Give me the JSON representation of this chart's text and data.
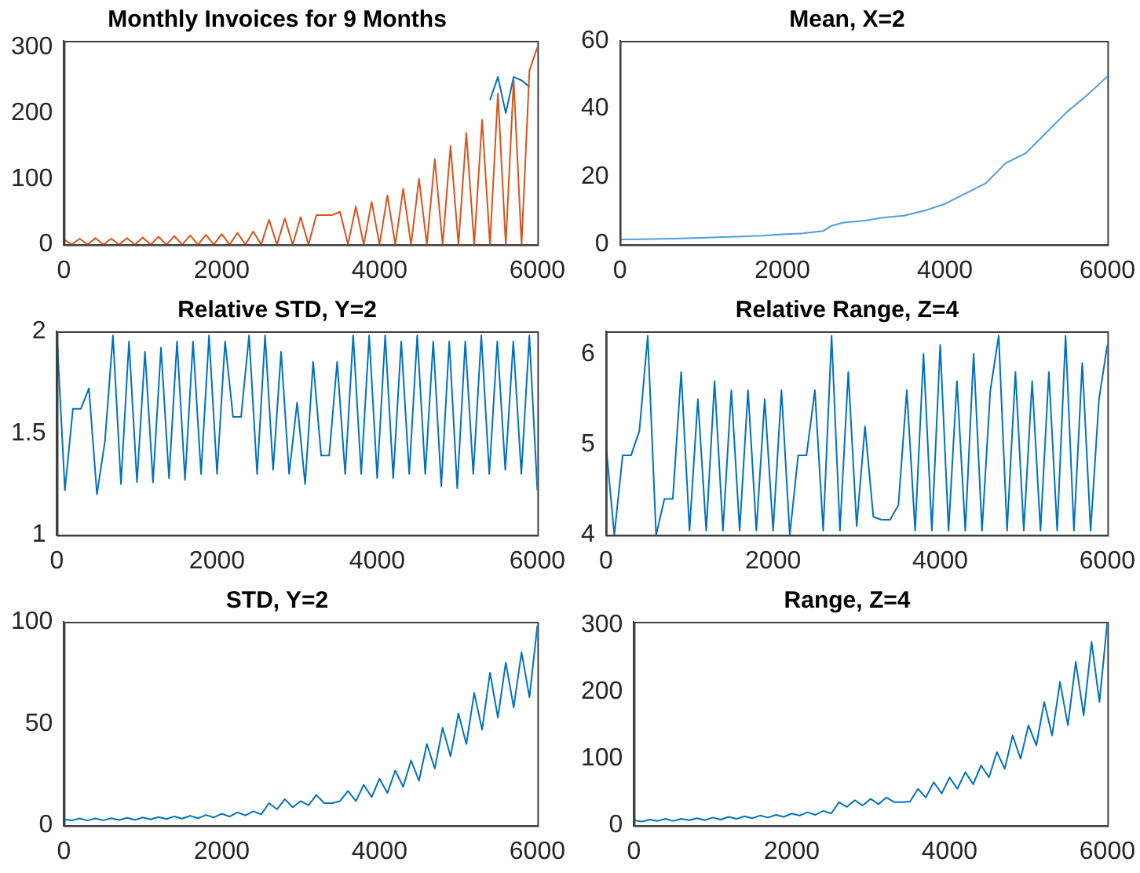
{
  "chart_data": [
    {
      "type": "line",
      "title": "Monthly Invoices for 9 Months",
      "x": [
        0,
        100,
        200,
        300,
        400,
        500,
        600,
        700,
        800,
        900,
        1000,
        1100,
        1200,
        1300,
        1400,
        1500,
        1600,
        1700,
        1800,
        1900,
        2000,
        2100,
        2200,
        2300,
        2400,
        2500,
        2600,
        2700,
        2800,
        2900,
        3000,
        3100,
        3200,
        3300,
        3400,
        3500,
        3600,
        3700,
        3800,
        3900,
        4000,
        4100,
        4200,
        4300,
        4400,
        4500,
        4600,
        4700,
        4800,
        4900,
        5000,
        5100,
        5200,
        5300,
        5400,
        5500,
        5600,
        5700,
        5800,
        5900,
        6000
      ],
      "series": [
        {
          "color": "#d95319",
          "values": [
            8,
            0,
            9,
            0,
            10,
            0,
            9,
            0,
            10,
            0,
            11,
            0,
            12,
            0,
            13,
            0,
            14,
            0,
            15,
            0,
            16,
            0,
            18,
            0,
            20,
            0,
            38,
            0,
            40,
            0,
            42,
            0,
            45,
            45,
            45,
            50,
            0,
            58,
            0,
            65,
            0,
            75,
            0,
            85,
            0,
            100,
            0,
            130,
            0,
            150,
            0,
            170,
            0,
            190,
            0,
            230,
            0,
            250,
            0,
            265,
            300
          ]
        },
        {
          "color": "#0072bd",
          "x": [
            5400,
            5500,
            5600,
            5700,
            5800,
            5900
          ],
          "values": [
            220,
            255,
            200,
            255,
            250,
            240
          ]
        }
      ],
      "xlim": [
        0,
        6000
      ],
      "xticks": [
        0,
        2000,
        4000,
        6000
      ],
      "ylim": [
        0,
        310
      ],
      "yticks": [
        0,
        100,
        200,
        300
      ],
      "grid": false,
      "marker": "none"
    },
    {
      "type": "line",
      "title": "Mean, X=2",
      "x": [
        0,
        250,
        500,
        750,
        1000,
        1250,
        1500,
        1750,
        2000,
        2250,
        2500,
        2600,
        2750,
        3000,
        3250,
        3500,
        3750,
        4000,
        4250,
        4500,
        4750,
        5000,
        5250,
        5500,
        5750,
        6000
      ],
      "series": [
        {
          "color": "#4f9fdc",
          "values": [
            1.5,
            1.6,
            1.7,
            1.8,
            2,
            2.2,
            2.4,
            2.6,
            3,
            3.3,
            4,
            5.5,
            6.5,
            7,
            8,
            8.5,
            10,
            12,
            15,
            18,
            24,
            27,
            33,
            39,
            44,
            49.5
          ]
        }
      ],
      "xlim": [
        0,
        6000
      ],
      "xticks": [
        0,
        2000,
        4000,
        6000
      ],
      "ylim": [
        0,
        60
      ],
      "yticks": [
        0,
        20,
        40,
        60
      ],
      "grid": false,
      "marker": "none"
    },
    {
      "type": "line",
      "title": "Relative STD, Y=2",
      "x": [
        0,
        100,
        200,
        300,
        400,
        500,
        600,
        700,
        800,
        900,
        1000,
        1100,
        1200,
        1300,
        1400,
        1500,
        1600,
        1700,
        1800,
        1900,
        2000,
        2100,
        2200,
        2300,
        2400,
        2500,
        2600,
        2700,
        2800,
        2900,
        3000,
        3100,
        3200,
        3300,
        3400,
        3500,
        3600,
        3700,
        3800,
        3900,
        4000,
        4100,
        4200,
        4300,
        4400,
        4500,
        4600,
        4700,
        4800,
        4900,
        5000,
        5100,
        5200,
        5300,
        5400,
        5500,
        5600,
        5700,
        5800,
        5900,
        6000
      ],
      "series": [
        {
          "color": "#0072bd",
          "values": [
            1.98,
            1.22,
            1.62,
            1.62,
            1.72,
            1.2,
            1.46,
            1.98,
            1.25,
            1.95,
            1.26,
            1.9,
            1.26,
            1.92,
            1.28,
            1.95,
            1.27,
            1.95,
            1.3,
            1.98,
            1.3,
            1.95,
            1.58,
            1.58,
            1.98,
            1.3,
            1.98,
            1.32,
            1.9,
            1.3,
            1.65,
            1.25,
            1.85,
            1.39,
            1.39,
            1.85,
            1.3,
            1.98,
            1.3,
            1.98,
            1.28,
            1.98,
            1.28,
            1.95,
            1.3,
            1.98,
            1.3,
            1.95,
            1.24,
            1.95,
            1.23,
            1.95,
            1.3,
            1.98,
            1.3,
            1.95,
            1.32,
            1.95,
            1.3,
            1.98,
            1.22
          ]
        }
      ],
      "xlim": [
        0,
        6000
      ],
      "xticks": [
        0,
        2000,
        4000,
        6000
      ],
      "ylim": [
        1,
        2
      ],
      "yticks": [
        1,
        1.5,
        2
      ],
      "grid": false,
      "marker": "none"
    },
    {
      "type": "line",
      "title": "Relative Range, Z=4",
      "x": [
        0,
        100,
        200,
        300,
        400,
        500,
        600,
        700,
        800,
        900,
        1000,
        1100,
        1200,
        1300,
        1400,
        1500,
        1600,
        1700,
        1800,
        1900,
        2000,
        2100,
        2200,
        2300,
        2400,
        2500,
        2600,
        2700,
        2800,
        2900,
        3000,
        3100,
        3200,
        3300,
        3400,
        3500,
        3600,
        3700,
        3800,
        3900,
        4000,
        4100,
        4200,
        4300,
        4400,
        4500,
        4600,
        4700,
        4800,
        4900,
        5000,
        5100,
        5200,
        5300,
        5400,
        5500,
        5600,
        5700,
        5800,
        5900,
        6000
      ],
      "series": [
        {
          "color": "#0072bd",
          "values": [
            5,
            4,
            4.88,
            4.88,
            5.15,
            6.2,
            4,
            4.4,
            4.4,
            5.8,
            4.05,
            5.5,
            4.05,
            5.7,
            4.05,
            5.6,
            4.05,
            5.6,
            4.05,
            5.5,
            4.05,
            5.6,
            4,
            4.88,
            4.88,
            5.6,
            4.05,
            6.2,
            4.05,
            5.8,
            4.1,
            5.2,
            4.2,
            4.17,
            4.17,
            4.33,
            5.6,
            4.05,
            6,
            4.05,
            6.1,
            4.05,
            5.7,
            4.05,
            6,
            4.05,
            5.6,
            6.2,
            4.05,
            5.8,
            4.05,
            5.7,
            4.05,
            5.8,
            4.05,
            6.2,
            4.05,
            5.9,
            4.05,
            5.5,
            6.1
          ]
        }
      ],
      "xlim": [
        0,
        6000
      ],
      "xticks": [
        0,
        2000,
        4000,
        6000
      ],
      "ylim": [
        4,
        6.25
      ],
      "yticks": [
        4,
        5,
        6
      ],
      "grid": false,
      "marker": "none"
    },
    {
      "type": "line",
      "title": "STD, Y=2",
      "x": [
        0,
        100,
        200,
        300,
        400,
        500,
        600,
        700,
        800,
        900,
        1000,
        1100,
        1200,
        1300,
        1400,
        1500,
        1600,
        1700,
        1800,
        1900,
        2000,
        2100,
        2200,
        2300,
        2400,
        2500,
        2600,
        2700,
        2800,
        2900,
        3000,
        3100,
        3200,
        3300,
        3400,
        3500,
        3600,
        3700,
        3800,
        3900,
        4000,
        4100,
        4200,
        4300,
        4400,
        4500,
        4600,
        4700,
        4800,
        4900,
        5000,
        5100,
        5200,
        5300,
        5400,
        5500,
        5600,
        5700,
        5800,
        5900,
        6000
      ],
      "series": [
        {
          "color": "#0072bd",
          "values": [
            3,
            2.5,
            3.5,
            2.5,
            3.5,
            2.6,
            3.6,
            2.7,
            3.8,
            2.8,
            4,
            3,
            4.2,
            3.2,
            4.5,
            3.4,
            4.8,
            3.6,
            5.2,
            4,
            5.8,
            4.4,
            6.5,
            5,
            7,
            5.5,
            11,
            8,
            13,
            9,
            12,
            10,
            15,
            11,
            11,
            12,
            17,
            12,
            20,
            14,
            23,
            16,
            27,
            19,
            32,
            22,
            40,
            28,
            48,
            34,
            55,
            40,
            65,
            47,
            75,
            53,
            80,
            58,
            85,
            63,
            98
          ]
        }
      ],
      "xlim": [
        0,
        6000
      ],
      "xticks": [
        0,
        2000,
        4000,
        6000
      ],
      "ylim": [
        0,
        100
      ],
      "yticks": [
        0,
        50,
        100
      ],
      "grid": false,
      "marker": "none"
    },
    {
      "type": "line",
      "title": "Range, Z=4",
      "x": [
        0,
        100,
        200,
        300,
        400,
        500,
        600,
        700,
        800,
        900,
        1000,
        1100,
        1200,
        1300,
        1400,
        1500,
        1600,
        1700,
        1800,
        1900,
        2000,
        2100,
        2200,
        2300,
        2400,
        2500,
        2600,
        2700,
        2800,
        2900,
        3000,
        3100,
        3200,
        3300,
        3400,
        3500,
        3600,
        3700,
        3800,
        3900,
        4000,
        4100,
        4200,
        4300,
        4400,
        4500,
        4600,
        4700,
        4800,
        4900,
        5000,
        5100,
        5200,
        5300,
        5400,
        5500,
        5600,
        5700,
        5800,
        5900,
        6000
      ],
      "series": [
        {
          "color": "#0072bd",
          "values": [
            8,
            6,
            9,
            7,
            10,
            7,
            10,
            8,
            11,
            8,
            12,
            9,
            13,
            10,
            14,
            11,
            15,
            12,
            16,
            13,
            18,
            15,
            20,
            16,
            22,
            18,
            35,
            28,
            38,
            30,
            40,
            32,
            42,
            35,
            35,
            36,
            55,
            42,
            65,
            48,
            72,
            55,
            80,
            62,
            90,
            72,
            110,
            85,
            135,
            100,
            150,
            120,
            185,
            135,
            215,
            150,
            245,
            165,
            275,
            185,
            305
          ]
        }
      ],
      "xlim": [
        0,
        6000
      ],
      "xticks": [
        0,
        2000,
        4000,
        6000
      ],
      "ylim": [
        0,
        305
      ],
      "yticks": [
        0,
        100,
        200,
        300
      ],
      "grid": false,
      "marker": "none"
    }
  ]
}
